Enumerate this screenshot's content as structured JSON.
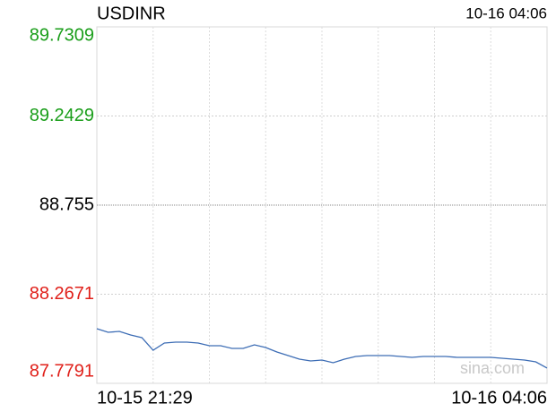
{
  "chart_data": {
    "type": "line",
    "title": "USDINR",
    "time": "10-16 04:06",
    "watermark": "sina.com",
    "categories": [
      "10-15 21:29",
      null,
      null,
      null,
      null,
      null,
      null,
      null,
      null,
      null,
      null,
      null,
      null,
      null,
      null,
      null,
      null,
      null,
      null,
      null,
      null,
      null,
      null,
      null,
      null,
      null,
      null,
      null,
      null,
      null,
      null,
      null,
      null,
      null,
      null,
      null,
      null,
      null,
      null,
      null,
      "10-16 04:06"
    ],
    "values": [
      88.0782,
      88.0586,
      88.0635,
      88.0439,
      88.0292,
      87.9605,
      87.9998,
      88.0047,
      88.0047,
      87.9998,
      87.9851,
      87.9851,
      87.9704,
      87.9704,
      87.99,
      87.9753,
      87.9507,
      87.9311,
      87.9115,
      87.9017,
      87.9066,
      87.8919,
      87.9115,
      87.9262,
      87.9311,
      87.9311,
      87.9311,
      87.9262,
      87.9213,
      87.9262,
      87.9262,
      87.9262,
      87.9213,
      87.9213,
      87.9213,
      87.9213,
      87.9164,
      87.9115,
      87.9066,
      87.8968,
      87.8625
    ],
    "color": "#3d6db5",
    "ylim": [
      87.7791,
      89.7309
    ],
    "yticks": [
      89.7309,
      89.2429,
      88.755,
      {
        "value": 88.2671,
        "label": "88.2671"
      },
      87.7791
    ],
    "ytick_colors": [
      "#1a9e1a",
      "#1a9e1a",
      "#000000",
      "#e0201a",
      "#e0201a"
    ],
    "x_grid_divisions": 8,
    "grid": true
  }
}
